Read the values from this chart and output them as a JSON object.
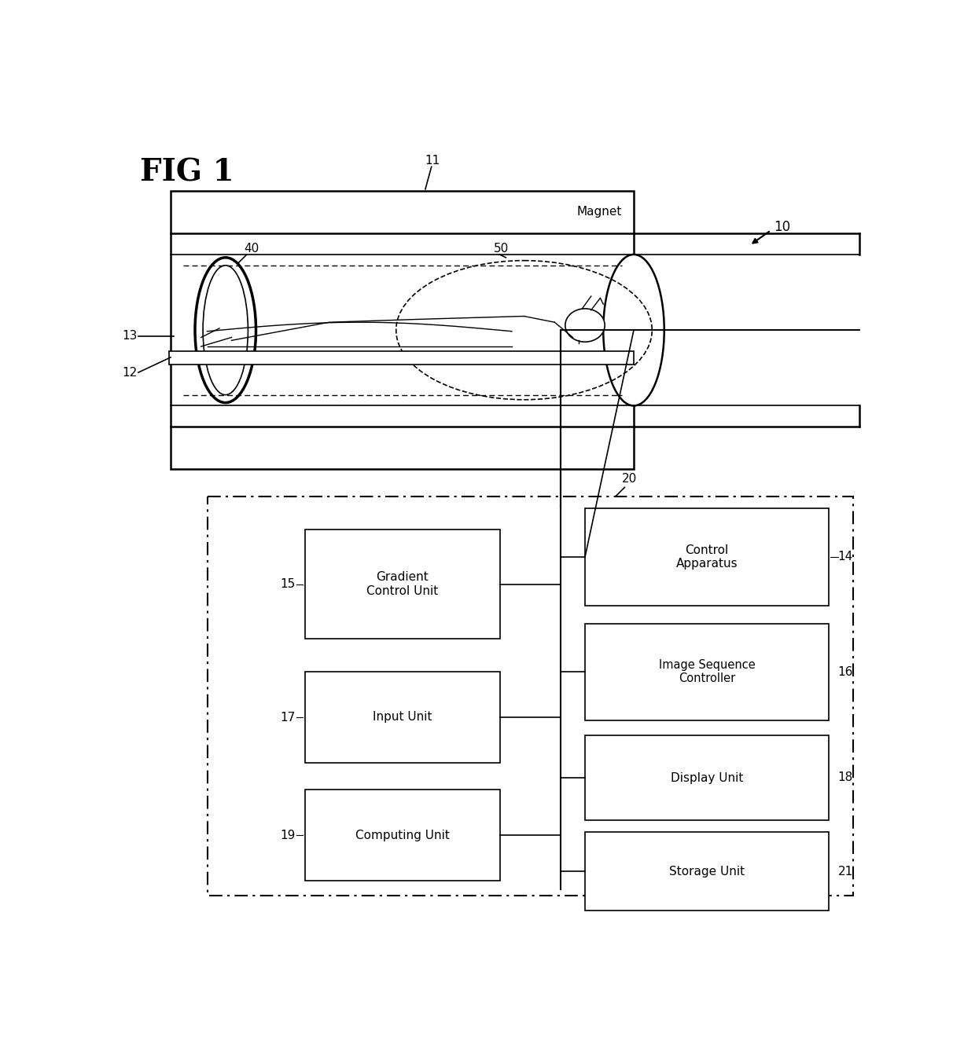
{
  "bg_color": "#ffffff",
  "lc": "#000000",
  "fig_title": "FIG 1",
  "magnet_label": "Magnet",
  "labels": {
    "11": "11",
    "40": "40",
    "50": "50",
    "13": "13",
    "12": "12",
    "10": "10",
    "20": "20",
    "14": "14",
    "15": "15",
    "16": "16",
    "17": "17",
    "18": "18",
    "19": "19",
    "21": "21"
  },
  "boxes": {
    "ctrl": {
      "text": "Control\nApparatus",
      "id": "14"
    },
    "img": {
      "text": "Image Sequence\nController",
      "id": "16"
    },
    "grad": {
      "text": "Gradient\nControl Unit",
      "id": "15"
    },
    "input": {
      "text": "Input Unit",
      "id": "17"
    },
    "disp": {
      "text": "Display Unit",
      "id": "18"
    },
    "comp": {
      "text": "Computing Unit",
      "id": "19"
    },
    "stor": {
      "text": "Storage Unit",
      "id": "21"
    }
  }
}
